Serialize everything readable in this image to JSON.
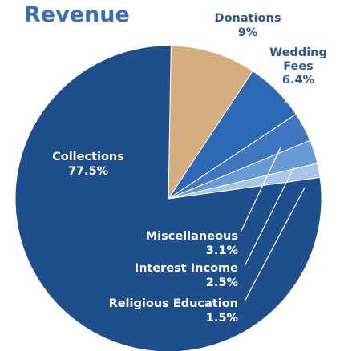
{
  "chart_data": {
    "type": "pie",
    "title": "Revenue",
    "slices": [
      {
        "name": "Collections",
        "value": 77.5,
        "label": "77.5%",
        "color": "#1f4e8c"
      },
      {
        "name": "Donations",
        "value": 9,
        "label": "9%",
        "color": "#d4ae7e"
      },
      {
        "name": "Wedding Fees",
        "value": 6.4,
        "label": "6.4%",
        "color": "#2d69b4"
      },
      {
        "name": "Miscellaneous",
        "value": 3.1,
        "label": "3.1%",
        "color": "#4177c0"
      },
      {
        "name": "Interest Income",
        "value": 2.5,
        "label": "2.5%",
        "color": "#6a9ad6"
      },
      {
        "name": "Religious Education",
        "value": 1.5,
        "label": "1.5%",
        "color": "#a8c6ea"
      }
    ],
    "labels": {
      "collections_name": "Collections",
      "collections_value": "77.5%",
      "donations_name": "Donations",
      "donations_value": "9%",
      "wedding_name_1": "Wedding",
      "wedding_name_2": "Fees",
      "wedding_value": "6.4%",
      "misc_name": "Miscellaneous",
      "misc_value": "3.1%",
      "interest_name": "Interest Income",
      "interest_value": "2.5%",
      "religious_name": "Religious Education",
      "religious_value": "1.5%"
    }
  }
}
